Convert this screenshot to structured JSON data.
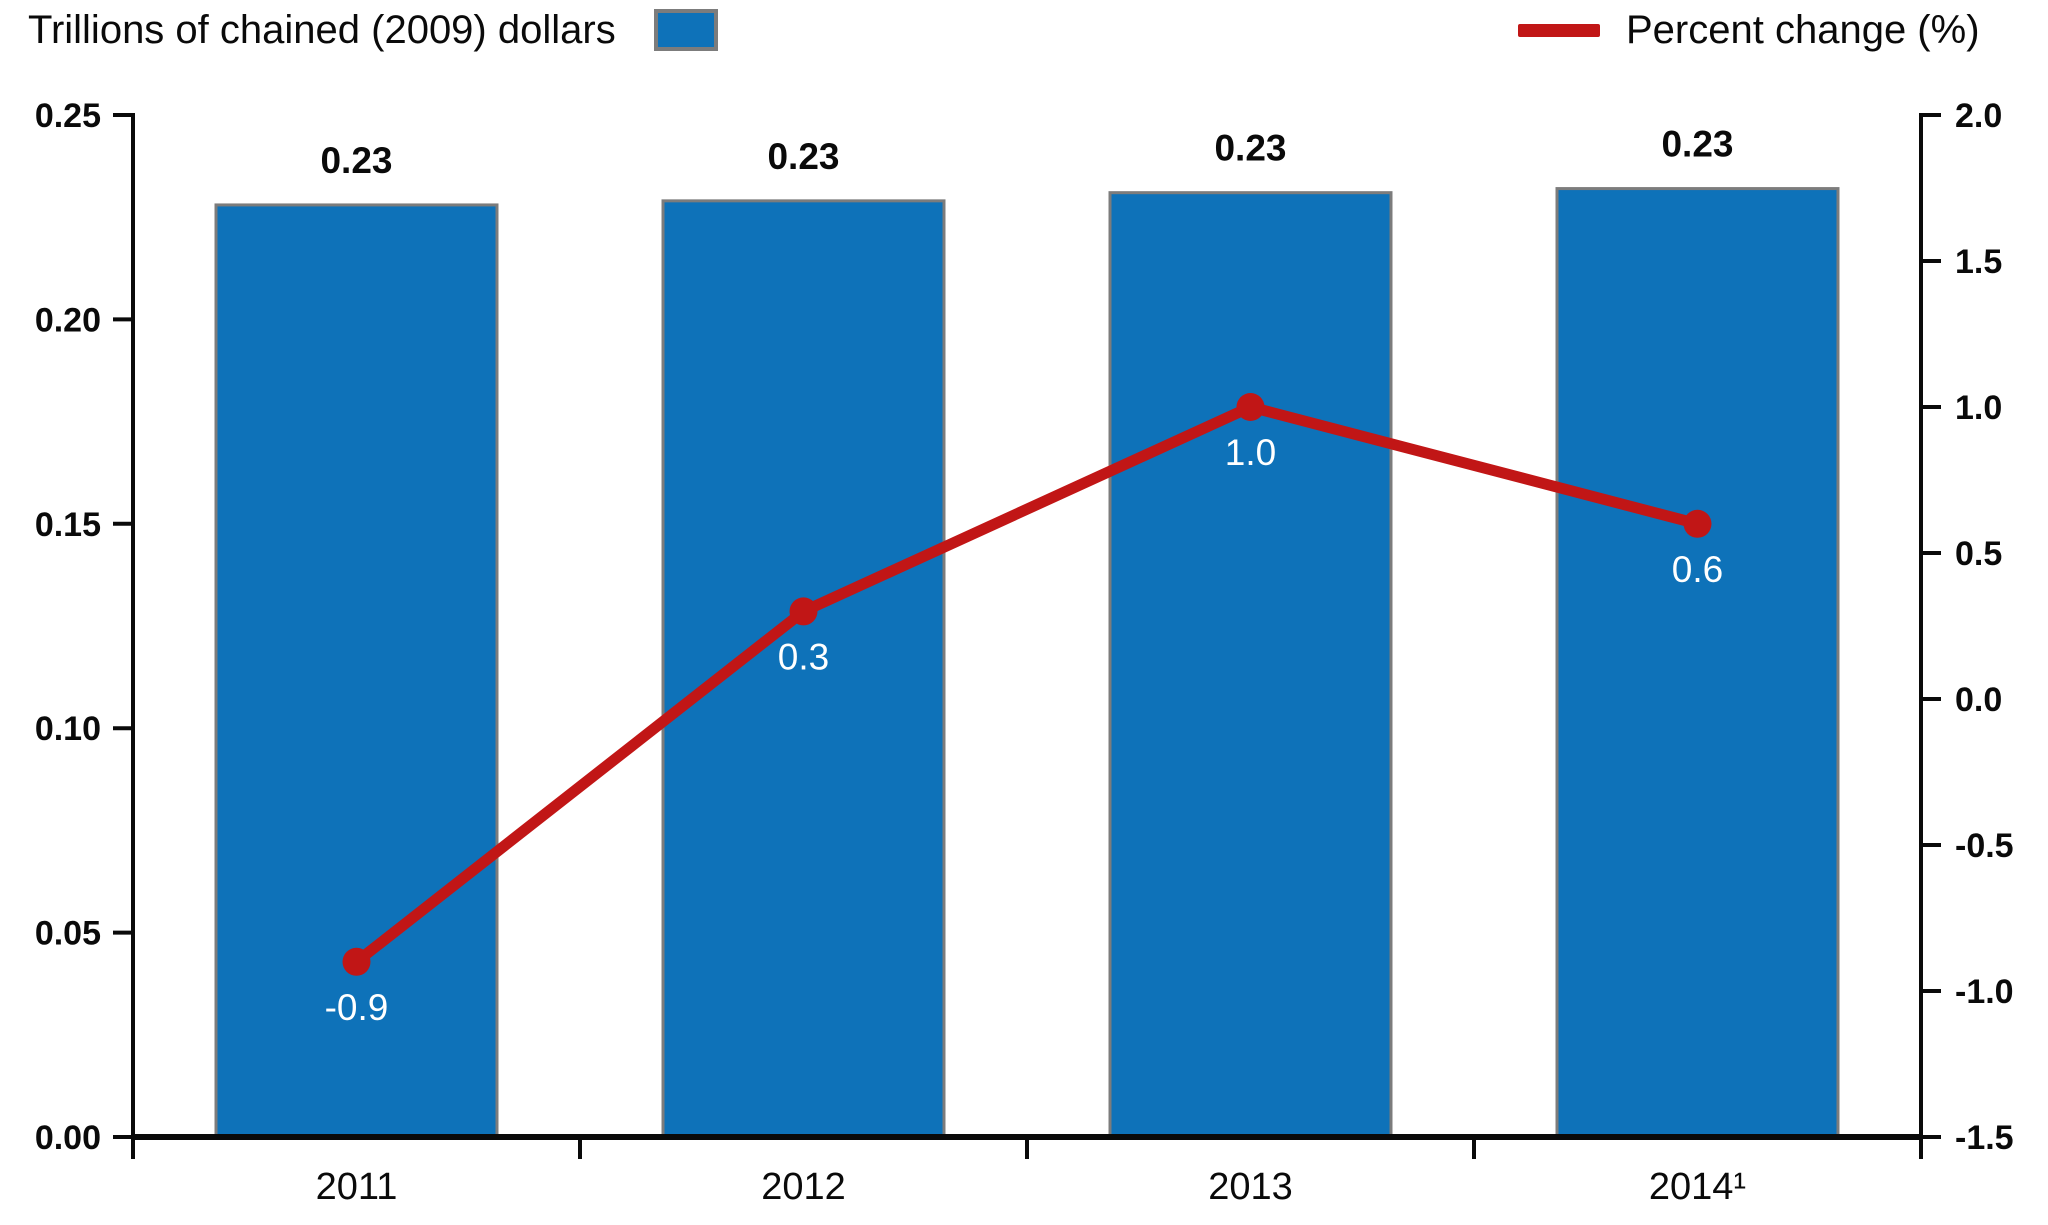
{
  "legend": {
    "left_label": "Trillions of chained (2009) dollars",
    "left_swatch_color": "#0E72B9",
    "left_swatch_border": "#7C7C7C",
    "right_label": "Percent change (%)",
    "right_swatch_color": "#C11616"
  },
  "chart_data": {
    "type": "combo",
    "title": "",
    "categories": [
      "2011",
      "2012",
      "2013",
      "2014¹"
    ],
    "series": [
      {
        "name": "Trillions of chained (2009) dollars",
        "type": "bar",
        "axis": "left",
        "values": [
          0.228,
          0.229,
          0.231,
          0.232
        ],
        "data_labels": [
          "0.23",
          "0.23",
          "0.23",
          "0.23"
        ],
        "color": "#0E72B9",
        "border_color": "#7C7C7C"
      },
      {
        "name": "Percent change (%)",
        "type": "line",
        "axis": "right",
        "values": [
          -0.9,
          0.3,
          1.0,
          0.6
        ],
        "data_labels": [
          "-0.9",
          "0.3",
          "1.0",
          "0.6"
        ],
        "color": "#C11616",
        "label_color": "#FFFFFF"
      }
    ],
    "left_axis": {
      "label": "Trillions of chained (2009) dollars",
      "min": 0,
      "max": 0.25,
      "tick_values": [
        0,
        0.05,
        0.1,
        0.15,
        0.2,
        0.25
      ],
      "tick_labels": [
        "0.00",
        "0.05",
        "0.10",
        "0.15",
        "0.20",
        "0.25"
      ]
    },
    "right_axis": {
      "label": "Percent change (%)",
      "min": -1.5,
      "max": 2.0,
      "tick_values": [
        -1.5,
        -1.0,
        -0.5,
        0,
        0.5,
        1.0,
        1.5,
        2.0
      ],
      "tick_labels": [
        "-1.5",
        "-1.0",
        "-0.5",
        "0.0",
        "0.5",
        "1.0",
        "1.5",
        "2.0"
      ]
    },
    "grid": false,
    "legend_position": "top",
    "axis_color": "#0a0a0a"
  }
}
